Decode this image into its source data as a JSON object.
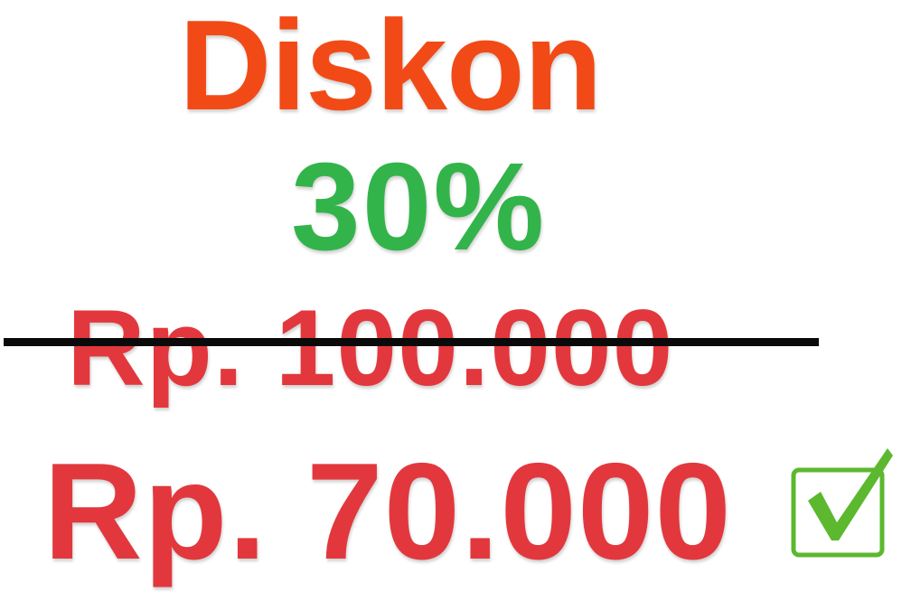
{
  "promo": {
    "title": "Diskon",
    "percent": "30%",
    "original_price": "Rp. 100.000",
    "discounted_price": "Rp. 70.000"
  },
  "icons": {
    "check": "checkbox-check-icon"
  },
  "colors": {
    "title": "#f24a16",
    "percent": "#33b44b",
    "price": "#e2383d",
    "strike": "#0a0a0a",
    "check": "#5cb82e"
  }
}
